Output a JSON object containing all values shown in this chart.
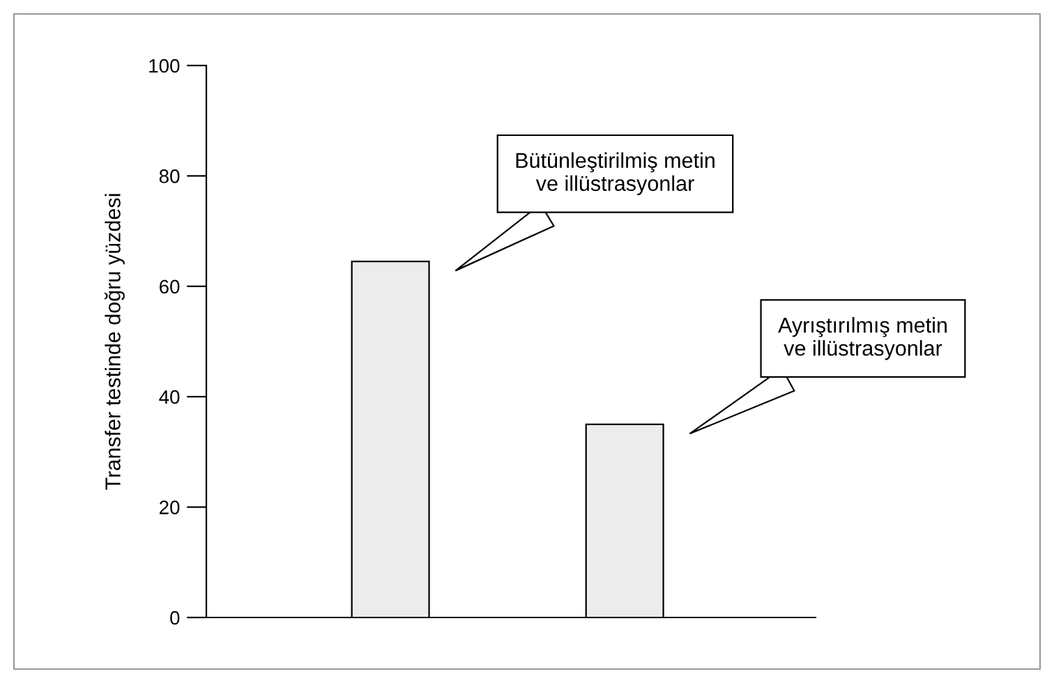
{
  "chart_data": {
    "type": "bar",
    "ylabel": "Transfer testinde doğru yüzdesi",
    "categories": [
      null,
      null
    ],
    "values": [
      64.5,
      35
    ],
    "color": "#ececec",
    "ylim": [
      0,
      100
    ],
    "yticks": [
      0,
      20,
      40,
      60,
      80,
      100
    ],
    "grid": false,
    "annotations": [
      "Bütünleştirilmiş metin\nve illüstrasyonlar",
      "Ayrıştırılmış metin\nve illüstrasyonlar"
    ]
  }
}
